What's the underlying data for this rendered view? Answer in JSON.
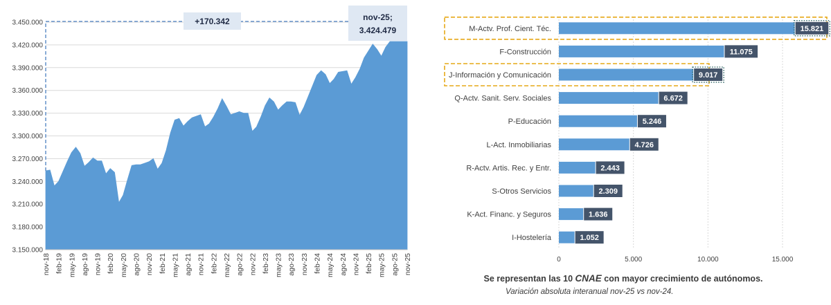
{
  "chart_data": [
    {
      "type": "area",
      "ylim": [
        3150000,
        3450000
      ],
      "yticks": [
        "3.150.000",
        "3.180.000",
        "3.210.000",
        "3.240.000",
        "3.270.000",
        "3.300.000",
        "3.330.000",
        "3.360.000",
        "3.390.000",
        "3.420.000",
        "3.450.000"
      ],
      "xticks": [
        "nov-18",
        "feb-19",
        "may-19",
        "ago-19",
        "nov-19",
        "feb-20",
        "may-20",
        "ago-20",
        "nov-20",
        "feb-21",
        "may-21",
        "ago-21",
        "nov-21",
        "feb-22",
        "may-22",
        "ago-22",
        "nov-22",
        "feb-23",
        "may-23",
        "ago-23",
        "nov-23",
        "feb-24",
        "may-24",
        "ago-24",
        "nov-24",
        "feb-25",
        "may-25",
        "ago-25",
        "nov-25"
      ],
      "x": [
        "nov-18",
        "dic-18",
        "ene-19",
        "feb-19",
        "mar-19",
        "abr-19",
        "may-19",
        "jun-19",
        "jul-19",
        "ago-19",
        "sep-19",
        "oct-19",
        "nov-19",
        "dic-19",
        "ene-20",
        "feb-20",
        "mar-20",
        "abr-20",
        "may-20",
        "jun-20",
        "jul-20",
        "ago-20",
        "sep-20",
        "oct-20",
        "nov-20",
        "dic-20",
        "ene-21",
        "feb-21",
        "mar-21",
        "abr-21",
        "may-21",
        "jun-21",
        "jul-21",
        "ago-21",
        "sep-21",
        "oct-21",
        "nov-21",
        "dic-21",
        "ene-22",
        "feb-22",
        "mar-22",
        "abr-22",
        "may-22",
        "jun-22",
        "jul-22",
        "ago-22",
        "sep-22",
        "oct-22",
        "nov-22",
        "dic-22",
        "ene-23",
        "feb-23",
        "mar-23",
        "abr-23",
        "may-23",
        "jun-23",
        "jul-23",
        "ago-23",
        "sep-23",
        "oct-23",
        "nov-23",
        "dic-23",
        "ene-24",
        "feb-24",
        "mar-24",
        "abr-24",
        "may-24",
        "jun-24",
        "jul-24",
        "ago-24",
        "sep-24",
        "oct-24",
        "nov-24",
        "dic-24",
        "ene-25",
        "feb-25",
        "mar-25",
        "abr-25",
        "may-25",
        "jun-25",
        "jul-25",
        "ago-25",
        "sep-25",
        "oct-25",
        "nov-25"
      ],
      "values": [
        3254000,
        3255000,
        3234000,
        3240000,
        3253000,
        3266000,
        3278000,
        3285000,
        3277000,
        3260000,
        3265000,
        3271000,
        3267000,
        3267000,
        3250000,
        3257000,
        3252000,
        3212000,
        3222000,
        3242000,
        3261000,
        3262000,
        3262000,
        3264000,
        3266000,
        3270000,
        3256000,
        3264000,
        3281000,
        3304000,
        3321000,
        3323000,
        3313000,
        3319000,
        3324000,
        3326000,
        3328000,
        3312000,
        3316000,
        3325000,
        3336000,
        3349000,
        3339000,
        3328000,
        3330000,
        3332000,
        3330000,
        3330000,
        3306000,
        3312000,
        3325000,
        3340000,
        3350000,
        3345000,
        3334000,
        3340000,
        3345000,
        3345000,
        3344000,
        3327000,
        3338000,
        3352000,
        3366000,
        3380000,
        3386000,
        3381000,
        3369000,
        3375000,
        3384000,
        3385000,
        3386000,
        3368000,
        3377000,
        3388000,
        3403000,
        3412000,
        3421000,
        3414000,
        3405000,
        3417000,
        3424479,
        3424479,
        3424479,
        3424479,
        3424479
      ],
      "annotations": {
        "delta": "+170.342",
        "last_label": "nov-25;",
        "last_value": "3.424.479"
      },
      "colors": {
        "area": "#5b9bd5",
        "callout_bg": "#dfe8f3",
        "dash": "#4a7fc1"
      }
    },
    {
      "type": "bar",
      "orientation": "horizontal",
      "categories": [
        "M-Actv. Prof. Cient. Téc.",
        "F-Construcción",
        "J-Información y Comunicación",
        "Q-Actv. Sanit. Serv. Sociales",
        "P-Educación",
        "L-Act. Inmobiliarias",
        "R-Actv. Artis. Rec. y Entr.",
        "S-Otros Servicios",
        "K-Act. Financ. y Seguros",
        "I-Hostelería"
      ],
      "values": [
        15821,
        11075,
        9017,
        6672,
        5246,
        4726,
        2443,
        2309,
        1636,
        1052
      ],
      "value_labels": [
        "15.821",
        "11.075",
        "9.017",
        "6.672",
        "5.246",
        "4.726",
        "2.443",
        "2.309",
        "1.636",
        "1.052"
      ],
      "xlim": [
        0,
        17500
      ],
      "xticks": [
        "0",
        "5.000",
        "10.000",
        "15.000"
      ],
      "highlighted": [
        "M-Actv. Prof. Cient. Téc.",
        "J-Información y Comunicación"
      ],
      "colors": {
        "bar": "#5b9bd5",
        "label_bg": "#44546a",
        "highlight": "#e6a817",
        "grid": "#d9d9d9"
      }
    }
  ],
  "footer": {
    "line1_pre": "Se representan las 10 ",
    "line1_em": "CNAE",
    "line1_post": " con mayor crecimiento de autónomos.",
    "line2": "Variación absoluta interanual nov-25 vs nov-24."
  }
}
